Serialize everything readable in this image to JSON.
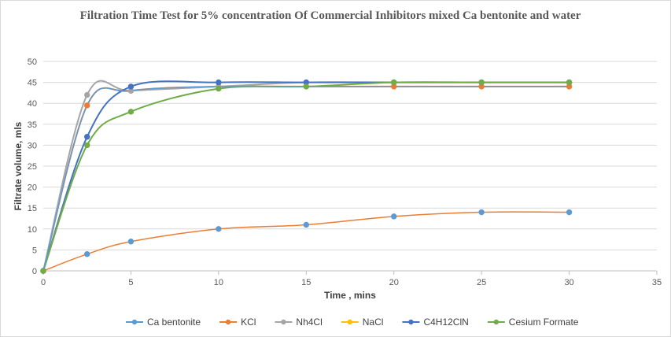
{
  "chart_data": {
    "type": "line",
    "title": "Filtration Time Test for 5% concentration  Of Commercial Inhibitors mixed Ca bentonite  and water",
    "xlabel": "Time , mins",
    "ylabel": "Filtrate volume, mls",
    "xlim": [
      0,
      35
    ],
    "ylim": [
      0,
      50
    ],
    "xticks": [
      0,
      5,
      10,
      15,
      20,
      25,
      30,
      35
    ],
    "yticks": [
      0,
      5,
      10,
      15,
      20,
      25,
      30,
      35,
      40,
      45,
      50
    ],
    "grid": true,
    "legend_position": "bottom",
    "series": [
      {
        "name": "Ca bentonite",
        "color": "#5b9bd5",
        "line": false,
        "x": [
          0,
          2.5,
          5,
          10,
          15,
          20,
          25,
          30
        ],
        "y": [
          0,
          4,
          7,
          10,
          11,
          13,
          14,
          14
        ]
      },
      {
        "name": "KCl",
        "color": "#ed7d31",
        "line": true,
        "x": [
          0,
          2.5,
          5,
          10,
          15,
          20,
          25,
          30
        ],
        "y": [
          0,
          39.5,
          43,
          44,
          44,
          44,
          44,
          44
        ]
      },
      {
        "name": "Nh4Cl",
        "color": "#a5a5a5",
        "line": true,
        "x": [
          0,
          2.5,
          5,
          10,
          15,
          20,
          25,
          30
        ],
        "y": [
          0,
          42,
          43,
          44,
          45,
          45,
          45,
          45
        ]
      },
      {
        "name": "NaCl",
        "color": "#ffc000",
        "line": true,
        "x": [],
        "y": []
      },
      {
        "name": "C4H12ClN",
        "color": "#4472c4",
        "line": true,
        "x": [
          0,
          2.5,
          5,
          10,
          15,
          20,
          25,
          30
        ],
        "y": [
          0,
          32,
          44,
          45,
          45,
          45,
          45,
          45
        ]
      },
      {
        "name": "Cesium Formate",
        "color": "#70ad47",
        "line": true,
        "x": [
          0,
          2.5,
          5,
          10,
          15,
          20,
          25,
          30
        ],
        "y": [
          0,
          30,
          38,
          43.5,
          44,
          45,
          45,
          45
        ]
      }
    ],
    "overlay_lines": [
      {
        "color": "#ed7d31",
        "x": [
          0,
          2.5,
          5,
          10,
          15,
          20,
          25,
          30
        ],
        "y": [
          0,
          4,
          7,
          10,
          11,
          13,
          14,
          14
        ]
      },
      {
        "color": "#5b9bd5",
        "x": [
          0,
          2.5,
          5,
          10,
          15,
          20,
          25,
          30
        ],
        "y": [
          0,
          39.5,
          43,
          44,
          44,
          44,
          44,
          44
        ]
      }
    ]
  }
}
